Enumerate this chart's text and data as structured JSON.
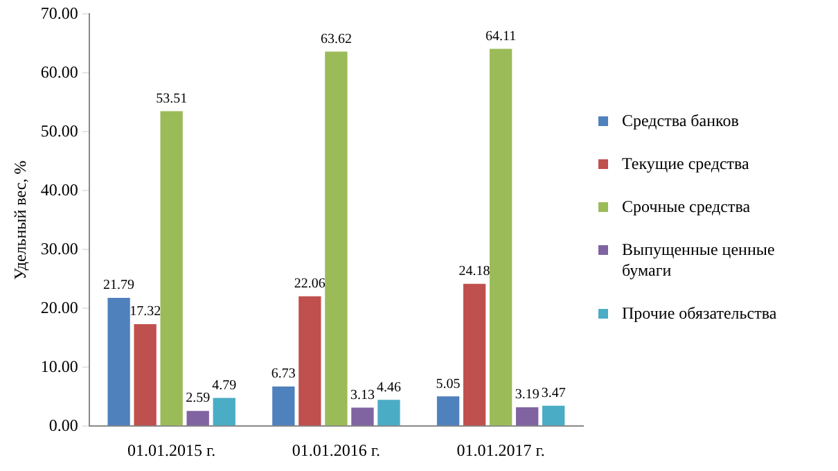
{
  "chart_data": {
    "type": "bar",
    "ylabel": "Удельный вес, %",
    "categories": [
      "01.01.2015 г.",
      "01.01.2016 г.",
      "01.01.2017 г."
    ],
    "series": [
      {
        "name": "Средства банков",
        "color": "#4f81bd",
        "values": [
          21.79,
          6.73,
          5.05
        ]
      },
      {
        "name": "Текущие средства",
        "color": "#c0504d",
        "values": [
          17.32,
          22.06,
          24.18
        ]
      },
      {
        "name": "Срочные средства",
        "color": "#9bbb59",
        "values": [
          53.51,
          63.62,
          64.11
        ]
      },
      {
        "name": "Выпущенные ценные бумаги",
        "color": "#8064a2",
        "values": [
          2.59,
          3.13,
          3.19
        ]
      },
      {
        "name": "Прочие обязательства",
        "color": "#4bacc6",
        "values": [
          4.79,
          4.46,
          3.47
        ]
      }
    ],
    "ylim": [
      0,
      70
    ],
    "yticks": [
      {
        "value": 0,
        "label": "0.00"
      },
      {
        "value": 10,
        "label": "10.00"
      },
      {
        "value": 20,
        "label": "20.00"
      },
      {
        "value": 30,
        "label": "30.00"
      },
      {
        "value": 40,
        "label": "40.00"
      },
      {
        "value": 50,
        "label": "50.00"
      },
      {
        "value": 60,
        "label": "60.00"
      },
      {
        "value": 70,
        "label": "70.00"
      }
    ],
    "grid": false,
    "legend": "right",
    "data_labels": true
  }
}
